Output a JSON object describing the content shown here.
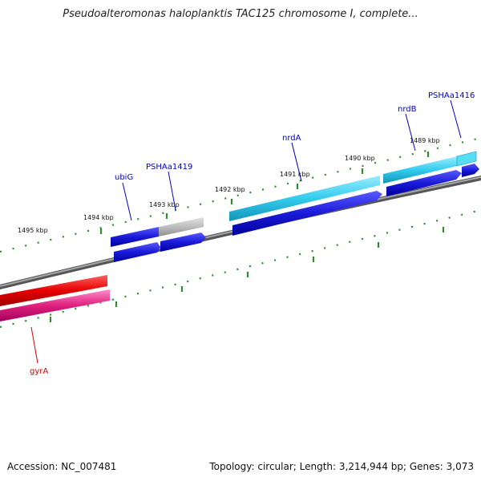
{
  "title": "Pseudoalteromonas haloplanktis TAC125 chromosome I, complete...",
  "footer": {
    "accession": "Accession: NC_007481",
    "summary": "Topology: circular; Length: 3,214,944 bp; Genes: 3,073"
  },
  "ticks": [
    {
      "label": "1495 kbp"
    },
    {
      "label": "1494 kbp"
    },
    {
      "label": "1493 kbp"
    },
    {
      "label": "1492 kbp"
    },
    {
      "label": "1491 kbp"
    },
    {
      "label": "1490 kbp"
    },
    {
      "label": "1489 kbp"
    }
  ],
  "genes": [
    {
      "name": "ubiG",
      "color": "#0000cc"
    },
    {
      "name": "PSHAa1419",
      "color": "#0000cc"
    },
    {
      "name": "nrdA",
      "color": "#0000cc"
    },
    {
      "name": "nrdB",
      "color": "#0000cc"
    },
    {
      "name": "PSHAa1416",
      "color": "#0000cc"
    },
    {
      "name": "gyrA",
      "color": "#dd0000"
    }
  ],
  "colors": {
    "backbone": "#808080",
    "tick": "#2e8b2e",
    "cds_forward": "#1a1ad9",
    "cds_other": "#bdbdbd",
    "cds_cyan": "#33ccee",
    "cds_red": "#e60000",
    "cds_pink": "#e0207f"
  }
}
